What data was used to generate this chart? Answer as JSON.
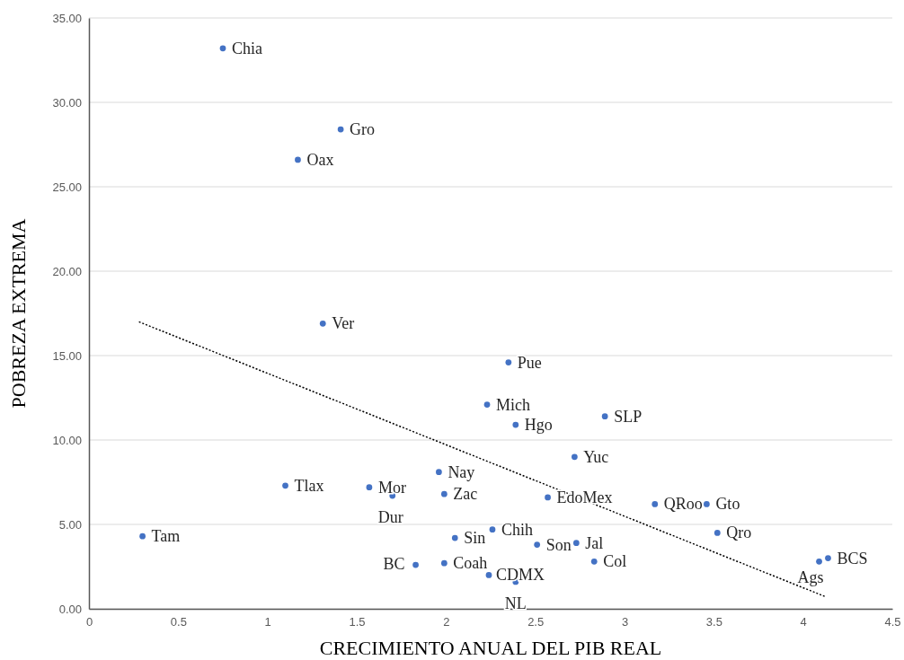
{
  "chart_data": {
    "type": "scatter",
    "xlabel": "CRECIMIENTO ANUAL DEL PIB REAL",
    "ylabel": "POBREZA EXTREMA",
    "xlim": [
      0,
      4.5
    ],
    "xticks": [
      0,
      0.5,
      1,
      1.5,
      2,
      2.5,
      3,
      3.5,
      4,
      4.5
    ],
    "ylim": [
      0,
      35
    ],
    "yticks": [
      {
        "value": 0,
        "label": "0.00"
      },
      {
        "value": 5,
        "label": "5.00"
      },
      {
        "value": 10,
        "label": "10.00"
      },
      {
        "value": 15,
        "label": "15.00"
      },
      {
        "value": 20,
        "label": "20.00"
      },
      {
        "value": 25,
        "label": "25.00"
      },
      {
        "value": 30,
        "label": "30.00"
      },
      {
        "value": 35,
        "label": "35.00"
      }
    ],
    "grid": "y",
    "marker": "circle",
    "series": [
      {
        "color": "#4472c4",
        "x": [
          0.75,
          1.41,
          1.17,
          1.31,
          2.35,
          2.23,
          2.39,
          2.89,
          2.72,
          1.96,
          1.1,
          1.57,
          1.7,
          1.99,
          2.57,
          3.17,
          3.46,
          0.3,
          2.26,
          2.05,
          2.51,
          2.73,
          3.52,
          1.83,
          1.99,
          2.83,
          2.24,
          2.39,
          4.09,
          4.14
        ],
        "values": [
          33.2,
          28.4,
          26.6,
          16.9,
          14.6,
          12.1,
          10.9,
          11.4,
          9.0,
          8.1,
          7.3,
          7.2,
          6.7,
          6.8,
          6.6,
          6.2,
          6.2,
          4.3,
          4.7,
          4.2,
          3.8,
          3.9,
          4.5,
          2.6,
          2.7,
          2.8,
          2.0,
          1.6,
          2.8,
          3.0
        ]
      },
      {
        "type": "line",
        "color": "#000000",
        "line_style": "dotted",
        "marker": "none",
        "x": [
          0.28,
          4.13
        ],
        "values": [
          17.0,
          0.7
        ]
      }
    ],
    "annotations": [
      {
        "text": "Chia",
        "x": 0.75,
        "y": 33.2
      },
      {
        "text": "Gro",
        "x": 1.41,
        "y": 28.4
      },
      {
        "text": "Oax",
        "x": 1.17,
        "y": 26.6
      },
      {
        "text": "Ver",
        "x": 1.31,
        "y": 16.9
      },
      {
        "text": "Pue",
        "x": 2.35,
        "y": 14.6
      },
      {
        "text": "Mich",
        "x": 2.23,
        "y": 12.1
      },
      {
        "text": "Hgo",
        "x": 2.39,
        "y": 10.9
      },
      {
        "text": "SLP",
        "x": 2.89,
        "y": 11.4
      },
      {
        "text": "Yuc",
        "x": 2.72,
        "y": 9.0
      },
      {
        "text": "Nay",
        "x": 1.96,
        "y": 8.1
      },
      {
        "text": "Tlax",
        "x": 1.1,
        "y": 7.3
      },
      {
        "text": "Mor",
        "x": 1.57,
        "y": 7.2
      },
      {
        "text": "Dur",
        "x": 1.7,
        "y": 6.7
      },
      {
        "text": "Zac",
        "x": 1.99,
        "y": 6.8
      },
      {
        "text": "EdoMex",
        "x": 2.57,
        "y": 6.6
      },
      {
        "text": "QRoo",
        "x": 3.17,
        "y": 6.2
      },
      {
        "text": "Gto",
        "x": 3.46,
        "y": 6.2
      },
      {
        "text": "Tam",
        "x": 0.3,
        "y": 4.3
      },
      {
        "text": "Chih",
        "x": 2.26,
        "y": 4.7
      },
      {
        "text": "Sin",
        "x": 2.05,
        "y": 4.2
      },
      {
        "text": "Son",
        "x": 2.51,
        "y": 3.8
      },
      {
        "text": "Jal",
        "x": 2.73,
        "y": 3.9
      },
      {
        "text": "Qro",
        "x": 3.52,
        "y": 4.5
      },
      {
        "text": "BC",
        "x": 1.83,
        "y": 2.6
      },
      {
        "text": "Coah",
        "x": 1.99,
        "y": 2.7
      },
      {
        "text": "Col",
        "x": 2.83,
        "y": 2.8
      },
      {
        "text": "CDMX",
        "x": 2.24,
        "y": 2.0
      },
      {
        "text": "NL",
        "x": 2.39,
        "y": 1.6
      },
      {
        "text": "Ags",
        "x": 4.09,
        "y": 2.8
      },
      {
        "text": "BCS",
        "x": 4.14,
        "y": 3.0
      }
    ]
  }
}
